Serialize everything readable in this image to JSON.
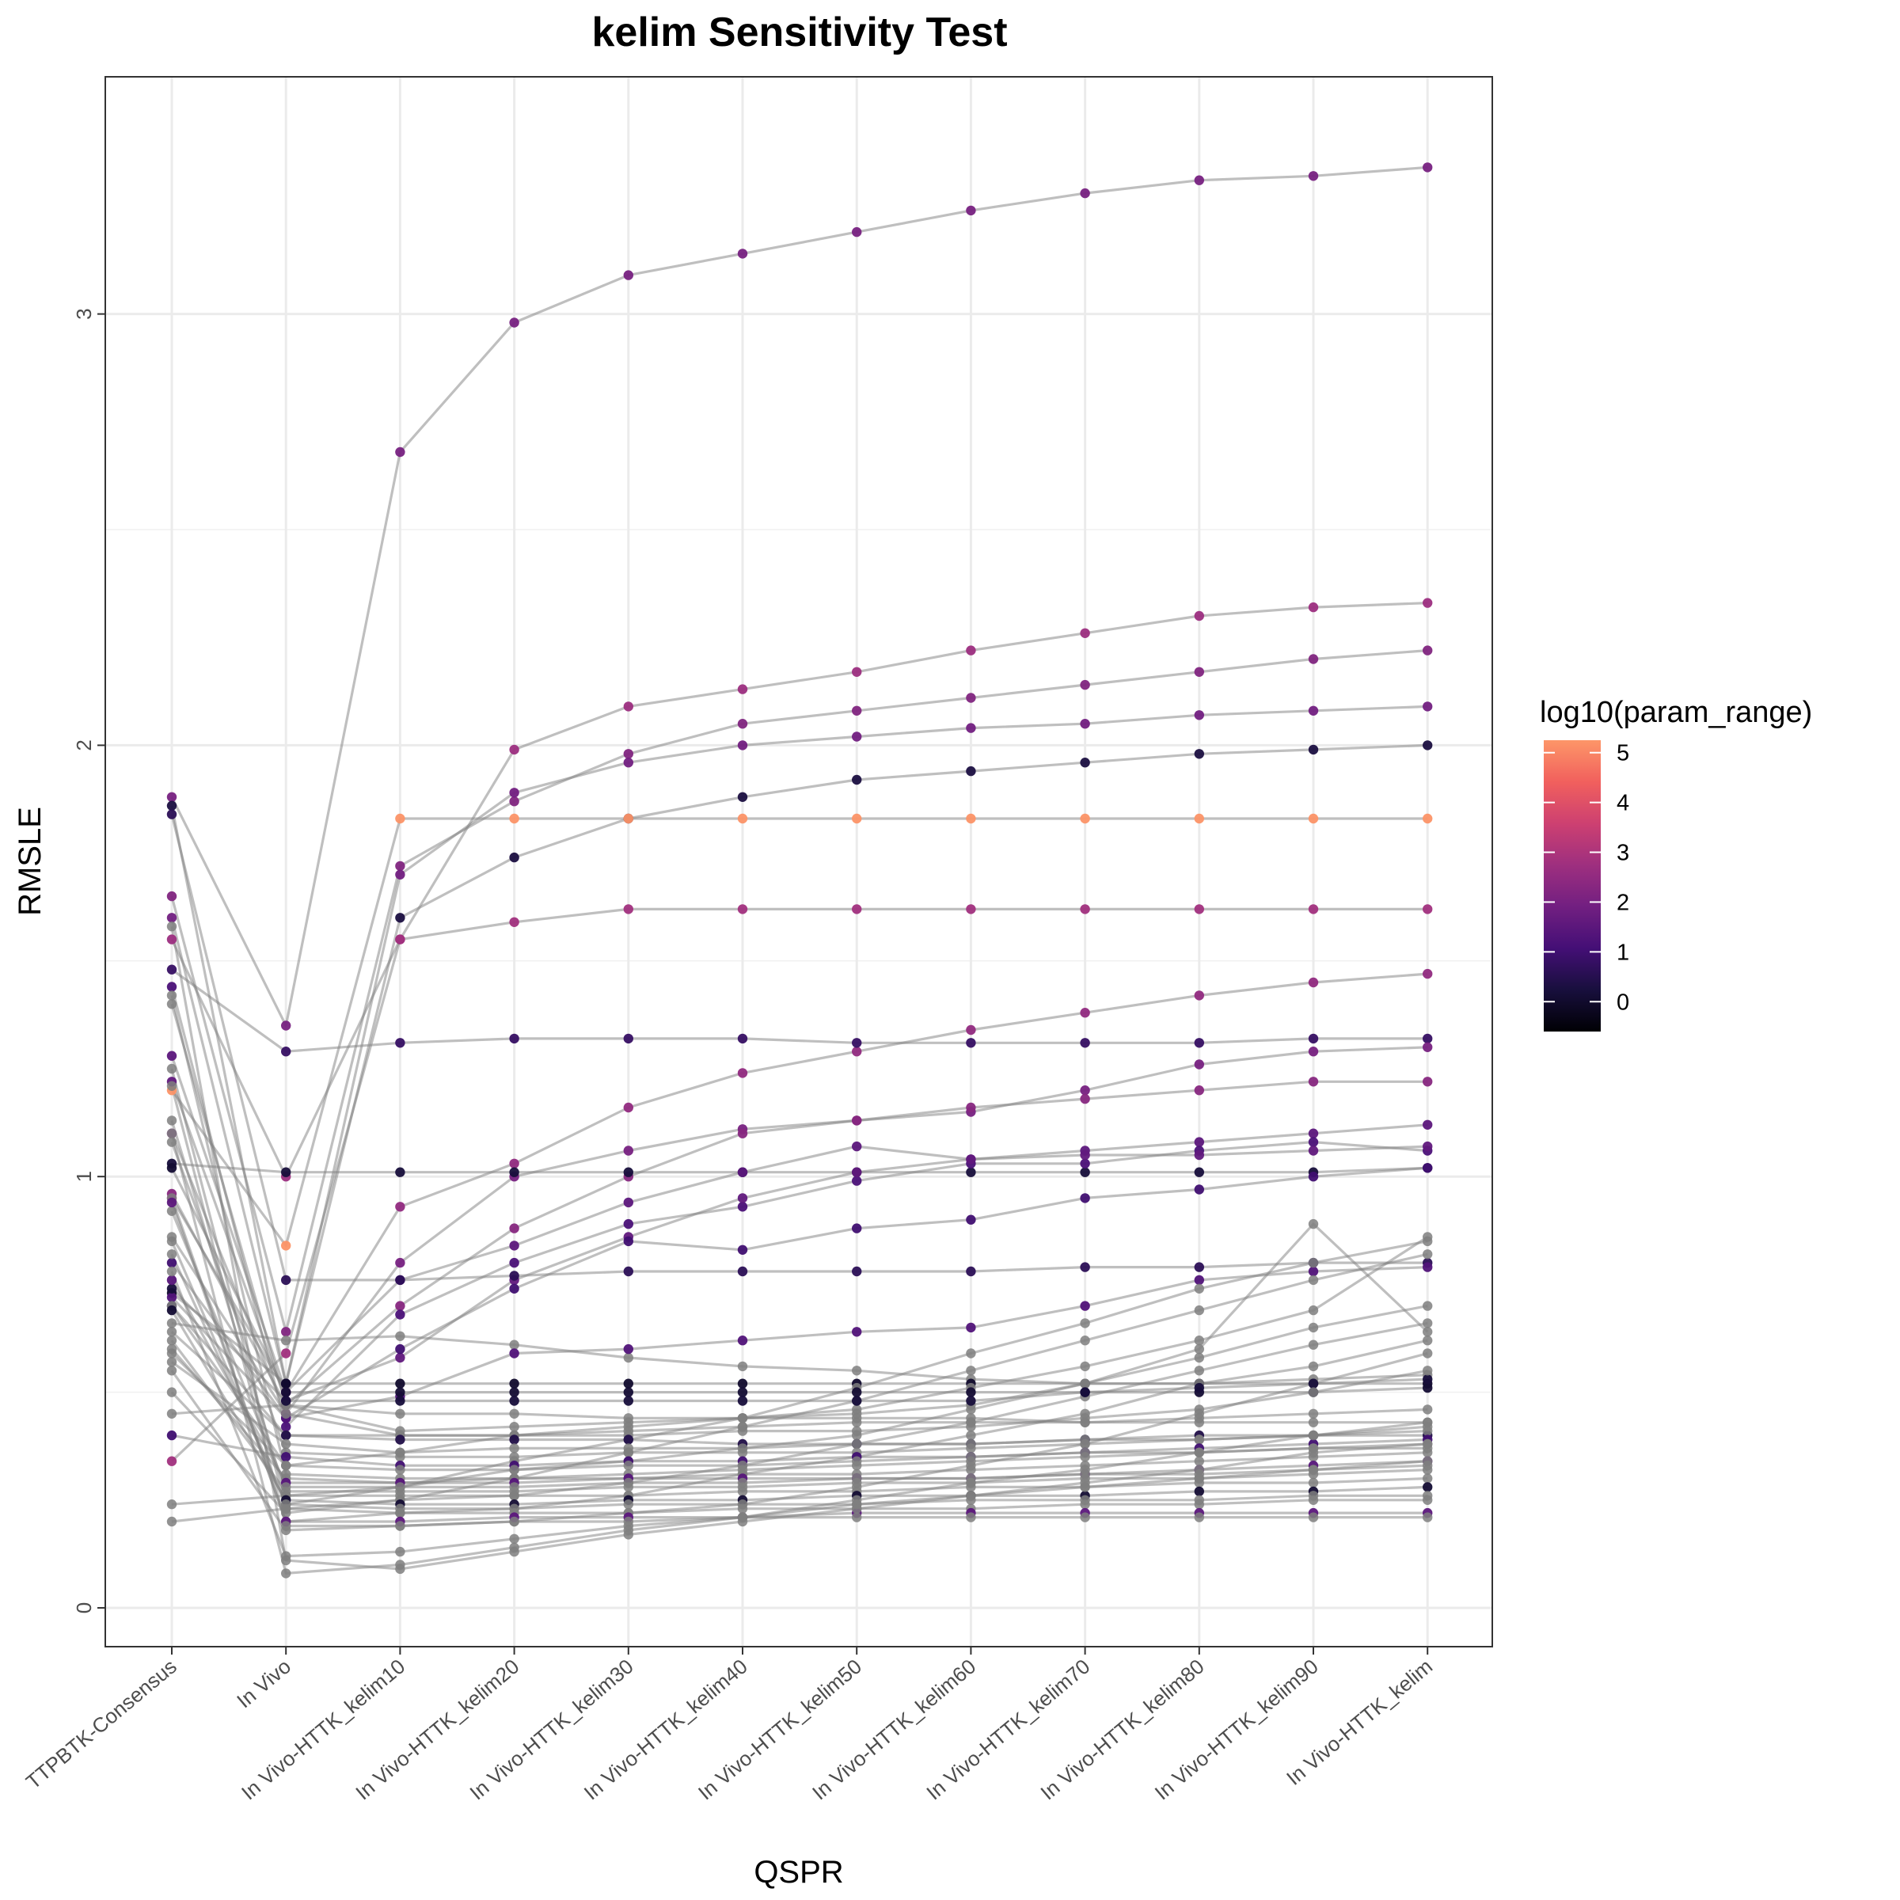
{
  "chart_data": {
    "type": "line",
    "title": "kelim Sensitivity Test",
    "xlabel": "QSPR",
    "ylabel": "RMSLE",
    "categories": [
      "TTPBTK-Consensus",
      "In Vivo",
      "In Vivo-HTTK_kelim10",
      "In Vivo-HTTK_kelim20",
      "In Vivo-HTTK_kelim30",
      "In Vivo-HTTK_kelim40",
      "In Vivo-HTTK_kelim50",
      "In Vivo-HTTK_kelim60",
      "In Vivo-HTTK_kelim70",
      "In Vivo-HTTK_kelim80",
      "In Vivo-HTTK_kelim90",
      "In Vivo-HTTK_kelim"
    ],
    "ylim": [
      -0.09,
      3.55
    ],
    "y_ticks": [
      0,
      1,
      2,
      3
    ],
    "grid": true,
    "line_color": "#808080",
    "na_point_color": "#7f7f7f",
    "legend": {
      "title": "log10(param_range)",
      "placement": "right",
      "ticks": [
        0,
        1,
        2,
        3,
        4,
        5
      ],
      "range": [
        -0.6,
        5.25
      ],
      "colormap": "magma",
      "color_stops": [
        "#000004",
        "#180f3d",
        "#440f76",
        "#721f81",
        "#9e2f7f",
        "#cd4071",
        "#f1605d",
        "#fd9668"
      ]
    },
    "series": [
      {
        "c": 2.0,
        "values": [
          1.88,
          1.35,
          2.68,
          2.98,
          3.09,
          3.14,
          3.19,
          3.24,
          3.28,
          3.31,
          3.32,
          3.34
        ]
      },
      {
        "c": 2.7,
        "values": [
          1.55,
          1.0,
          1.55,
          1.99,
          2.09,
          2.13,
          2.17,
          2.22,
          2.26,
          2.3,
          2.32,
          2.33
        ]
      },
      {
        "c": 2.2,
        "values": [
          1.65,
          0.64,
          1.72,
          1.87,
          1.98,
          2.05,
          2.08,
          2.11,
          2.14,
          2.17,
          2.2,
          2.22
        ]
      },
      {
        "c": 1.9,
        "values": [
          1.6,
          0.52,
          1.7,
          1.89,
          1.96,
          2.0,
          2.02,
          2.04,
          2.05,
          2.07,
          2.08,
          2.09
        ]
      },
      {
        "c": 0.3,
        "values": [
          1.86,
          0.52,
          1.6,
          1.74,
          1.83,
          1.88,
          1.92,
          1.94,
          1.96,
          1.98,
          1.99,
          2.0
        ]
      },
      {
        "c": 5.2,
        "values": [
          1.2,
          0.84,
          1.83,
          1.83,
          1.83,
          1.83,
          1.83,
          1.83,
          1.83,
          1.83,
          1.83,
          1.83
        ]
      },
      {
        "c": 2.8,
        "values": [
          0.34,
          0.59,
          1.55,
          1.59,
          1.62,
          1.62,
          1.62,
          1.62,
          1.62,
          1.62,
          1.62,
          1.62
        ]
      },
      {
        "c": 2.5,
        "values": [
          0.95,
          0.5,
          0.93,
          1.03,
          1.16,
          1.24,
          1.29,
          1.34,
          1.38,
          1.42,
          1.45,
          1.47
        ]
      },
      {
        "c": 0.8,
        "values": [
          1.48,
          1.29,
          1.31,
          1.32,
          1.32,
          1.32,
          1.31,
          1.31,
          1.31,
          1.31,
          1.32,
          1.32
        ]
      },
      {
        "c": 2.0,
        "values": [
          1.1,
          0.45,
          0.8,
          1.0,
          1.06,
          1.11,
          1.13,
          1.15,
          1.2,
          1.26,
          1.29,
          1.3
        ]
      },
      {
        "c": 2.3,
        "values": [
          0.96,
          0.47,
          0.7,
          0.88,
          1.0,
          1.1,
          1.13,
          1.16,
          1.18,
          1.2,
          1.22,
          1.22
        ]
      },
      {
        "c": 0.2,
        "values": [
          1.03,
          1.01,
          1.01,
          1.01,
          1.01,
          1.01,
          1.01,
          1.01,
          1.01,
          1.01,
          1.01,
          1.02
        ]
      },
      {
        "c": 1.5,
        "values": [
          1.28,
          0.5,
          0.76,
          0.84,
          0.94,
          1.01,
          1.07,
          1.04,
          1.06,
          1.08,
          1.1,
          1.12
        ]
      },
      {
        "c": 1.2,
        "values": [
          1.44,
          0.42,
          0.68,
          0.8,
          0.89,
          0.93,
          0.99,
          1.03,
          1.03,
          1.06,
          1.08,
          1.06
        ]
      },
      {
        "c": 1.6,
        "values": [
          1.22,
          0.48,
          0.58,
          0.76,
          0.86,
          0.95,
          1.01,
          1.04,
          1.05,
          1.05,
          1.06,
          1.07
        ]
      },
      {
        "c": 1.0,
        "values": [
          0.8,
          0.44,
          0.6,
          0.74,
          0.85,
          0.83,
          0.88,
          0.9,
          0.95,
          0.97,
          1.0,
          1.02
        ]
      },
      {
        "c": 0.6,
        "values": [
          1.84,
          0.76,
          0.76,
          0.77,
          0.78,
          0.78,
          0.78,
          0.78,
          0.79,
          0.79,
          0.8,
          0.8
        ]
      },
      {
        "c": null,
        "values": [
          0.66,
          0.62,
          0.63,
          0.61,
          0.58,
          0.56,
          0.55,
          0.53,
          0.52,
          0.52,
          0.53,
          0.54
        ]
      },
      {
        "c": 0.0,
        "values": [
          0.73,
          0.52,
          0.52,
          0.52,
          0.52,
          0.52,
          0.52,
          0.52,
          0.52,
          0.52,
          0.52,
          0.52
        ]
      },
      {
        "c": 1.3,
        "values": [
          0.72,
          0.44,
          0.49,
          0.59,
          0.6,
          0.62,
          0.64,
          0.65,
          0.7,
          0.76,
          0.78,
          0.79
        ]
      },
      {
        "c": null,
        "values": [
          1.4,
          0.47,
          0.45,
          0.45,
          0.44,
          0.44,
          0.44,
          0.44,
          0.43,
          0.43,
          0.43,
          0.43
        ]
      },
      {
        "c": null,
        "values": [
          0.45,
          0.47,
          0.41,
          0.42,
          0.43,
          0.44,
          0.45,
          0.47,
          0.52,
          0.58,
          0.65,
          0.7
        ]
      },
      {
        "c": null,
        "values": [
          0.59,
          0.33,
          0.36,
          0.4,
          0.42,
          0.44,
          0.46,
          0.51,
          0.56,
          0.62,
          0.69,
          0.86
        ]
      },
      {
        "c": null,
        "values": [
          1.13,
          0.26,
          0.28,
          0.34,
          0.39,
          0.44,
          0.51,
          0.59,
          0.66,
          0.74,
          0.8,
          0.85
        ]
      },
      {
        "c": null,
        "values": [
          0.5,
          0.22,
          0.25,
          0.3,
          0.36,
          0.42,
          0.48,
          0.55,
          0.62,
          0.69,
          0.76,
          0.82
        ]
      },
      {
        "c": null,
        "values": [
          0.85,
          0.24,
          0.28,
          0.32,
          0.34,
          0.37,
          0.4,
          0.46,
          0.52,
          0.6,
          0.89,
          0.64
        ]
      },
      {
        "c": null,
        "values": [
          1.25,
          0.23,
          0.25,
          0.26,
          0.29,
          0.33,
          0.38,
          0.43,
          0.49,
          0.55,
          0.61,
          0.66
        ]
      },
      {
        "c": null,
        "values": [
          0.95,
          0.2,
          0.22,
          0.23,
          0.26,
          0.31,
          0.35,
          0.4,
          0.45,
          0.52,
          0.56,
          0.62
        ]
      },
      {
        "c": null,
        "values": [
          0.55,
          0.18,
          0.19,
          0.2,
          0.22,
          0.24,
          0.28,
          0.33,
          0.38,
          0.45,
          0.52,
          0.59
        ]
      },
      {
        "c": 0.1,
        "values": [
          1.02,
          0.5,
          0.5,
          0.5,
          0.5,
          0.5,
          0.5,
          0.5,
          0.5,
          0.5,
          0.5,
          0.51
        ]
      },
      {
        "c": 0.2,
        "values": [
          0.74,
          0.48,
          0.48,
          0.48,
          0.48,
          0.48,
          0.48,
          0.48,
          0.5,
          0.51,
          0.52,
          0.53
        ]
      },
      {
        "c": null,
        "values": [
          0.86,
          0.45,
          0.4,
          0.4,
          0.41,
          0.42,
          0.43,
          0.43,
          0.43,
          0.44,
          0.45,
          0.46
        ]
      },
      {
        "c": null,
        "values": [
          0.64,
          0.4,
          0.4,
          0.4,
          0.4,
          0.41,
          0.41,
          0.42,
          0.44,
          0.46,
          0.5,
          0.55
        ]
      },
      {
        "c": 0.4,
        "values": [
          0.7,
          0.4,
          0.39,
          0.39,
          0.39,
          0.38,
          0.38,
          0.38,
          0.39,
          0.4,
          0.4,
          0.4
        ]
      },
      {
        "c": null,
        "values": [
          0.57,
          0.38,
          0.36,
          0.37,
          0.37,
          0.37,
          0.38,
          0.38,
          0.39,
          0.39,
          0.4,
          0.41
        ]
      },
      {
        "c": null,
        "values": [
          1.08,
          0.36,
          0.35,
          0.35,
          0.36,
          0.36,
          0.36,
          0.37,
          0.38,
          0.39,
          0.4,
          0.42
        ]
      },
      {
        "c": 1.0,
        "values": [
          0.4,
          0.35,
          0.33,
          0.33,
          0.34,
          0.34,
          0.35,
          0.35,
          0.36,
          0.37,
          0.38,
          0.39
        ]
      },
      {
        "c": null,
        "values": [
          0.7,
          0.33,
          0.32,
          0.32,
          0.33,
          0.33,
          0.34,
          0.35,
          0.36,
          0.36,
          0.37,
          0.38
        ]
      },
      {
        "c": null,
        "values": [
          1.42,
          0.31,
          0.3,
          0.3,
          0.31,
          0.32,
          0.33,
          0.34,
          0.35,
          0.36,
          0.37,
          0.37
        ]
      },
      {
        "c": null,
        "values": [
          0.6,
          0.3,
          0.29,
          0.3,
          0.3,
          0.31,
          0.31,
          0.32,
          0.33,
          0.34,
          0.35,
          0.36
        ]
      },
      {
        "c": 1.4,
        "values": [
          0.76,
          0.29,
          0.29,
          0.29,
          0.3,
          0.3,
          0.3,
          0.3,
          0.31,
          0.32,
          0.33,
          0.34
        ]
      },
      {
        "c": null,
        "values": [
          0.92,
          0.28,
          0.28,
          0.28,
          0.29,
          0.29,
          0.3,
          0.3,
          0.31,
          0.31,
          0.32,
          0.33
        ]
      },
      {
        "c": null,
        "values": [
          0.62,
          0.27,
          0.27,
          0.27,
          0.28,
          0.28,
          0.29,
          0.29,
          0.3,
          0.3,
          0.31,
          0.32
        ]
      },
      {
        "c": null,
        "values": [
          0.24,
          0.26,
          0.26,
          0.26,
          0.26,
          0.27,
          0.27,
          0.28,
          0.28,
          0.29,
          0.29,
          0.3
        ]
      },
      {
        "c": 0.1,
        "values": [
          0.69,
          0.25,
          0.24,
          0.24,
          0.25,
          0.25,
          0.26,
          0.26,
          0.26,
          0.27,
          0.27,
          0.28
        ]
      },
      {
        "c": null,
        "values": [
          0.82,
          0.24,
          0.23,
          0.23,
          0.24,
          0.24,
          0.24,
          0.25,
          0.25,
          0.25,
          0.26,
          0.26
        ]
      },
      {
        "c": null,
        "values": [
          0.2,
          0.23,
          0.22,
          0.22,
          0.22,
          0.23,
          0.23,
          0.23,
          0.24,
          0.24,
          0.25,
          0.25
        ]
      },
      {
        "c": 1.5,
        "values": [
          0.94,
          0.2,
          0.2,
          0.21,
          0.21,
          0.21,
          0.22,
          0.22,
          0.22,
          0.22,
          0.22,
          0.22
        ]
      },
      {
        "c": null,
        "values": [
          1.21,
          0.19,
          0.19,
          0.2,
          0.2,
          0.21,
          0.21,
          0.21,
          0.21,
          0.21,
          0.21,
          0.21
        ]
      },
      {
        "c": null,
        "values": [
          0.78,
          0.12,
          0.13,
          0.16,
          0.19,
          0.21,
          0.24,
          0.26,
          0.28,
          0.3,
          0.32,
          0.34
        ]
      },
      {
        "c": null,
        "values": [
          1.58,
          0.11,
          0.09,
          0.13,
          0.17,
          0.2,
          0.23,
          0.26,
          0.29,
          0.32,
          0.36,
          0.38
        ]
      },
      {
        "c": null,
        "values": [
          1.1,
          0.08,
          0.1,
          0.14,
          0.18,
          0.21,
          0.25,
          0.29,
          0.32,
          0.36,
          0.4,
          0.43
        ]
      }
    ]
  }
}
